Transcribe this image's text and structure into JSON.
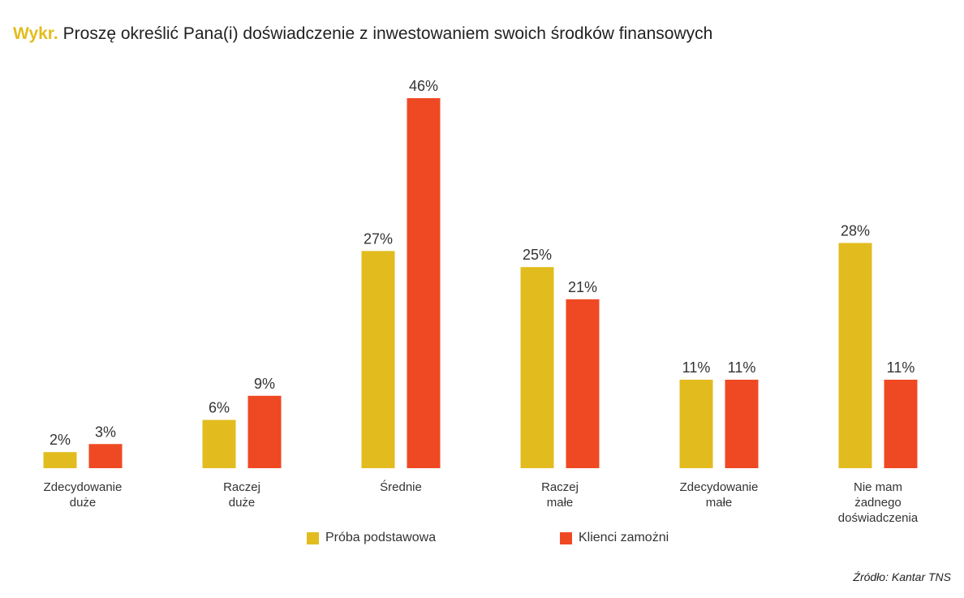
{
  "title": {
    "prefix": "Wykr.",
    "text": "Proszę określić Pana(i) doświadczenie z inwestowaniem swoich środków finansowych"
  },
  "source": "Źródło: Kantar TNS",
  "colors": {
    "series1": "#E2BC1F",
    "series2": "#EF4923",
    "prefix": "#E2BC1F"
  },
  "chart_data": {
    "type": "bar",
    "categories": [
      [
        "Zdecydowanie",
        "duże"
      ],
      [
        "Raczej",
        "duże"
      ],
      [
        "Średnie"
      ],
      [
        "Raczej",
        "małe"
      ],
      [
        "Zdecydowanie",
        "małe"
      ],
      [
        "Nie mam",
        "żadnego",
        "doświadczenia"
      ]
    ],
    "series": [
      {
        "name": "Próba podstawowa",
        "values": [
          2,
          6,
          27,
          25,
          11,
          28
        ],
        "labels": [
          "2%",
          "6%",
          "27%",
          "25%",
          "11%",
          "28%"
        ]
      },
      {
        "name": "Klienci zamożni",
        "values": [
          3,
          9,
          46,
          21,
          11,
          11
        ],
        "labels": [
          "3%",
          "9%",
          "46%",
          "21%",
          "11%",
          "11%"
        ]
      }
    ],
    "ylim": [
      0,
      46
    ],
    "grid": false,
    "legend": "bottom"
  }
}
